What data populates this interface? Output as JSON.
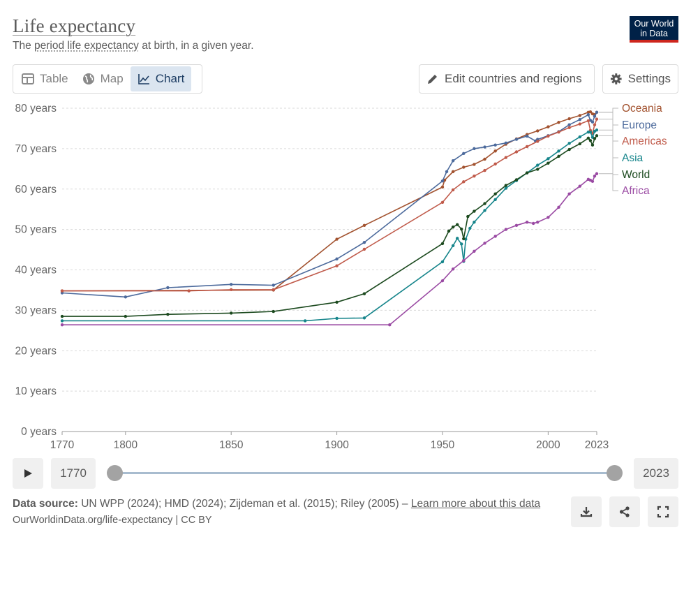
{
  "header": {
    "title": "Life expectancy",
    "subtitle_pre": "The ",
    "subtitle_link": "period life expectancy",
    "subtitle_post": " at birth, in a given year.",
    "logo_line1": "Our World",
    "logo_line2": "in Data"
  },
  "tabs": [
    {
      "label": "Table",
      "icon": "table-icon",
      "active": false
    },
    {
      "label": "Map",
      "icon": "globe-icon",
      "active": false
    },
    {
      "label": "Chart",
      "icon": "line-chart-icon",
      "active": true
    }
  ],
  "toolbar": {
    "edit_label": "Edit countries and regions",
    "settings_label": "Settings"
  },
  "timeline": {
    "start_year": "1770",
    "end_year": "2023",
    "start_fraction": 0,
    "end_fraction": 1
  },
  "footer": {
    "source_label": "Data source:",
    "source_text": " UN WPP (2024); HMD (2024); Zijdeman et al. (2015); Riley (2005) – ",
    "learn_more": "Learn more about this data",
    "url_text": "OurWorldinData.org/life-expectancy | CC BY"
  },
  "chart_data": {
    "type": "line",
    "title": "Life expectancy",
    "xlabel": "",
    "ylabel": "",
    "xlim": [
      1770,
      2023
    ],
    "ylim": [
      0,
      80
    ],
    "x_ticks": [
      "1770",
      "1800",
      "1850",
      "1900",
      "1950",
      "2000",
      "2023"
    ],
    "y_ticks": [
      "0 years",
      "10 years",
      "20 years",
      "30 years",
      "40 years",
      "50 years",
      "60 years",
      "70 years",
      "80 years"
    ],
    "grid": "horizontal dashed",
    "legend": "right, end of lines",
    "series": [
      {
        "name": "Oceania",
        "color": "#a2522f",
        "points": [
          [
            1770,
            34.8
          ],
          [
            1870,
            35.0
          ],
          [
            1900,
            47.6
          ],
          [
            1913,
            51.0
          ],
          [
            1950,
            60.5
          ],
          [
            1951,
            62.2
          ],
          [
            1955,
            64.3
          ],
          [
            1960,
            65.4
          ],
          [
            1965,
            66.1
          ],
          [
            1970,
            67.4
          ],
          [
            1975,
            69.4
          ],
          [
            1980,
            71.1
          ],
          [
            1985,
            72.4
          ],
          [
            1990,
            73.5
          ],
          [
            1995,
            74.4
          ],
          [
            2000,
            75.4
          ],
          [
            2005,
            76.5
          ],
          [
            2010,
            77.4
          ],
          [
            2015,
            78.2
          ],
          [
            2019,
            79.0
          ],
          [
            2020,
            79.1
          ],
          [
            2021,
            78.6
          ],
          [
            2022,
            78.4
          ],
          [
            2023,
            79.0
          ]
        ]
      },
      {
        "name": "Europe",
        "color": "#4c6a9c",
        "points": [
          [
            1770,
            34.3
          ],
          [
            1800,
            33.3
          ],
          [
            1820,
            35.6
          ],
          [
            1850,
            36.4
          ],
          [
            1870,
            36.2
          ],
          [
            1900,
            42.7
          ],
          [
            1913,
            46.8
          ],
          [
            1950,
            62.0
          ],
          [
            1952,
            64.3
          ],
          [
            1955,
            67.0
          ],
          [
            1960,
            68.8
          ],
          [
            1965,
            70.0
          ],
          [
            1970,
            70.4
          ],
          [
            1975,
            70.9
          ],
          [
            1980,
            71.4
          ],
          [
            1985,
            72.3
          ],
          [
            1990,
            73.1
          ],
          [
            1994,
            71.9
          ],
          [
            1995,
            72.3
          ],
          [
            2000,
            73.2
          ],
          [
            2005,
            74.2
          ],
          [
            2010,
            75.9
          ],
          [
            2015,
            77.2
          ],
          [
            2019,
            78.4
          ],
          [
            2020,
            77.0
          ],
          [
            2021,
            76.6
          ],
          [
            2022,
            78.0
          ],
          [
            2023,
            79.0
          ]
        ]
      },
      {
        "name": "Americas",
        "color": "#c05a4a",
        "points": [
          [
            1770,
            34.8
          ],
          [
            1830,
            34.8
          ],
          [
            1850,
            35.1
          ],
          [
            1870,
            35.1
          ],
          [
            1900,
            41.0
          ],
          [
            1913,
            45.1
          ],
          [
            1950,
            56.7
          ],
          [
            1955,
            59.8
          ],
          [
            1960,
            61.8
          ],
          [
            1965,
            63.2
          ],
          [
            1970,
            64.6
          ],
          [
            1975,
            66.2
          ],
          [
            1980,
            67.8
          ],
          [
            1985,
            69.2
          ],
          [
            1990,
            70.5
          ],
          [
            1995,
            71.8
          ],
          [
            2000,
            73.1
          ],
          [
            2005,
            74.1
          ],
          [
            2010,
            75.2
          ],
          [
            2015,
            76.1
          ],
          [
            2019,
            76.9
          ],
          [
            2020,
            74.5
          ],
          [
            2021,
            73.8
          ],
          [
            2022,
            75.9
          ],
          [
            2023,
            77.3
          ]
        ]
      },
      {
        "name": "Asia",
        "color": "#16858b",
        "points": [
          [
            1770,
            27.4
          ],
          [
            1885,
            27.4
          ],
          [
            1900,
            28.0
          ],
          [
            1913,
            28.1
          ],
          [
            1950,
            42.0
          ],
          [
            1955,
            46.0
          ],
          [
            1957,
            47.8
          ],
          [
            1959,
            46.4
          ],
          [
            1960,
            42.1
          ],
          [
            1961,
            47.6
          ],
          [
            1963,
            50.3
          ],
          [
            1965,
            51.8
          ],
          [
            1970,
            54.7
          ],
          [
            1975,
            57.4
          ],
          [
            1980,
            60.2
          ],
          [
            1985,
            62.1
          ],
          [
            1990,
            64.0
          ],
          [
            1995,
            65.9
          ],
          [
            2000,
            67.5
          ],
          [
            2005,
            69.4
          ],
          [
            2010,
            71.3
          ],
          [
            2015,
            72.9
          ],
          [
            2019,
            74.1
          ],
          [
            2020,
            74.1
          ],
          [
            2021,
            72.8
          ],
          [
            2022,
            74.3
          ],
          [
            2023,
            74.6
          ]
        ]
      },
      {
        "name": "World",
        "color": "#1c4a1f",
        "points": [
          [
            1770,
            28.5
          ],
          [
            1800,
            28.5
          ],
          [
            1820,
            29.0
          ],
          [
            1850,
            29.3
          ],
          [
            1870,
            29.7
          ],
          [
            1900,
            32.0
          ],
          [
            1913,
            34.1
          ],
          [
            1950,
            46.5
          ],
          [
            1953,
            49.6
          ],
          [
            1955,
            50.6
          ],
          [
            1957,
            51.2
          ],
          [
            1959,
            50.1
          ],
          [
            1960,
            47.7
          ],
          [
            1962,
            53.2
          ],
          [
            1965,
            54.5
          ],
          [
            1970,
            56.4
          ],
          [
            1975,
            58.8
          ],
          [
            1980,
            60.9
          ],
          [
            1985,
            62.3
          ],
          [
            1990,
            64.0
          ],
          [
            1995,
            64.9
          ],
          [
            2000,
            66.4
          ],
          [
            2005,
            68.1
          ],
          [
            2010,
            69.8
          ],
          [
            2015,
            71.2
          ],
          [
            2019,
            72.6
          ],
          [
            2020,
            72.0
          ],
          [
            2021,
            70.9
          ],
          [
            2022,
            72.5
          ],
          [
            2023,
            73.2
          ]
        ]
      },
      {
        "name": "Africa",
        "color": "#9a4aa3",
        "points": [
          [
            1770,
            26.4
          ],
          [
            1925,
            26.4
          ],
          [
            1950,
            37.3
          ],
          [
            1955,
            40.2
          ],
          [
            1960,
            42.3
          ],
          [
            1965,
            44.6
          ],
          [
            1970,
            46.6
          ],
          [
            1975,
            48.3
          ],
          [
            1980,
            50.0
          ],
          [
            1985,
            51.0
          ],
          [
            1990,
            51.8
          ],
          [
            1993,
            51.5
          ],
          [
            1995,
            51.8
          ],
          [
            2000,
            53.0
          ],
          [
            2005,
            55.5
          ],
          [
            2010,
            58.8
          ],
          [
            2015,
            60.7
          ],
          [
            2019,
            62.4
          ],
          [
            2020,
            62.2
          ],
          [
            2021,
            61.9
          ],
          [
            2022,
            63.2
          ],
          [
            2023,
            63.8
          ]
        ]
      }
    ]
  }
}
